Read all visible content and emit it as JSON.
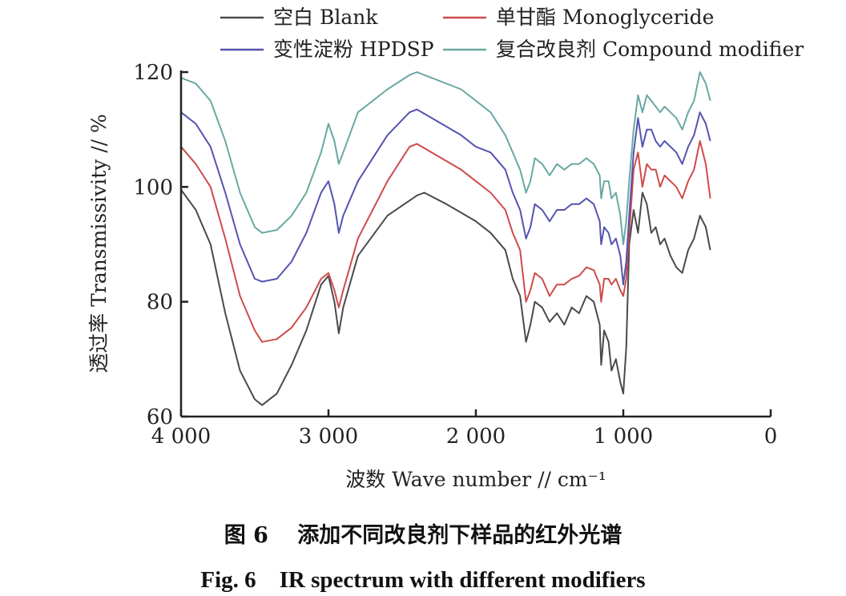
{
  "chart_data": {
    "type": "line",
    "xlabel": "波数 Wave number // cm⁻¹",
    "ylabel": "透过率 Transmissivity // %",
    "xlim": [
      4000,
      0
    ],
    "ylim": [
      60,
      120
    ],
    "x_ticks": [
      {
        "value": 4000,
        "label": "4 000"
      },
      {
        "value": 3000,
        "label": "3 000"
      },
      {
        "value": 2000,
        "label": "2 000"
      },
      {
        "value": 1000,
        "label": "1 000"
      },
      {
        "value": 0,
        "label": "0"
      }
    ],
    "y_ticks": [
      {
        "value": 60,
        "label": "60"
      },
      {
        "value": 80,
        "label": "80"
      },
      {
        "value": 100,
        "label": "100"
      },
      {
        "value": 120,
        "label": "120"
      }
    ],
    "grid": false,
    "legend_position": "top",
    "series": [
      {
        "name": "空白 Blank",
        "color": "#4a4a4a",
        "points": [
          [
            4000,
            99.5
          ],
          [
            3900,
            96
          ],
          [
            3800,
            90
          ],
          [
            3700,
            78
          ],
          [
            3600,
            68
          ],
          [
            3500,
            63
          ],
          [
            3450,
            62
          ],
          [
            3350,
            64
          ],
          [
            3250,
            69
          ],
          [
            3150,
            75
          ],
          [
            3050,
            83
          ],
          [
            3000,
            84.5
          ],
          [
            2960,
            80
          ],
          [
            2930,
            74.5
          ],
          [
            2900,
            79
          ],
          [
            2800,
            88
          ],
          [
            2600,
            95
          ],
          [
            2400,
            98.5
          ],
          [
            2350,
            99
          ],
          [
            2200,
            97
          ],
          [
            2000,
            94
          ],
          [
            1900,
            92
          ],
          [
            1800,
            89
          ],
          [
            1750,
            84
          ],
          [
            1700,
            81
          ],
          [
            1660,
            73
          ],
          [
            1630,
            76
          ],
          [
            1600,
            80
          ],
          [
            1550,
            79
          ],
          [
            1500,
            76.5
          ],
          [
            1450,
            78
          ],
          [
            1400,
            76
          ],
          [
            1350,
            79
          ],
          [
            1300,
            78
          ],
          [
            1250,
            81
          ],
          [
            1200,
            80
          ],
          [
            1160,
            76
          ],
          [
            1150,
            69
          ],
          [
            1130,
            75
          ],
          [
            1100,
            73
          ],
          [
            1080,
            68
          ],
          [
            1050,
            70
          ],
          [
            1020,
            66
          ],
          [
            1000,
            64
          ],
          [
            980,
            72
          ],
          [
            960,
            90
          ],
          [
            930,
            96
          ],
          [
            900,
            92
          ],
          [
            870,
            99
          ],
          [
            840,
            97
          ],
          [
            810,
            92
          ],
          [
            780,
            93
          ],
          [
            750,
            90
          ],
          [
            720,
            91
          ],
          [
            680,
            88
          ],
          [
            640,
            86
          ],
          [
            600,
            85
          ],
          [
            560,
            89
          ],
          [
            520,
            91
          ],
          [
            480,
            95
          ],
          [
            440,
            93
          ],
          [
            410,
            89
          ]
        ]
      },
      {
        "name": "单甘酯 Monoglyceride",
        "color": "#cf4b4b",
        "points": [
          [
            4000,
            107
          ],
          [
            3900,
            104
          ],
          [
            3800,
            100
          ],
          [
            3700,
            91
          ],
          [
            3600,
            81
          ],
          [
            3500,
            75
          ],
          [
            3450,
            73
          ],
          [
            3350,
            73.5
          ],
          [
            3250,
            75.5
          ],
          [
            3150,
            79
          ],
          [
            3050,
            84
          ],
          [
            3000,
            85
          ],
          [
            2960,
            82
          ],
          [
            2930,
            79
          ],
          [
            2900,
            82
          ],
          [
            2800,
            91
          ],
          [
            2600,
            101
          ],
          [
            2450,
            107
          ],
          [
            2400,
            107.5
          ],
          [
            2300,
            106
          ],
          [
            2100,
            103
          ],
          [
            2000,
            101
          ],
          [
            1900,
            99
          ],
          [
            1800,
            96
          ],
          [
            1750,
            92
          ],
          [
            1700,
            89
          ],
          [
            1660,
            80
          ],
          [
            1630,
            82
          ],
          [
            1600,
            85
          ],
          [
            1550,
            84
          ],
          [
            1500,
            81
          ],
          [
            1450,
            83
          ],
          [
            1400,
            83
          ],
          [
            1350,
            84
          ],
          [
            1300,
            84.5
          ],
          [
            1250,
            86
          ],
          [
            1200,
            85.5
          ],
          [
            1160,
            83
          ],
          [
            1150,
            80
          ],
          [
            1130,
            84
          ],
          [
            1100,
            84
          ],
          [
            1080,
            83
          ],
          [
            1050,
            84
          ],
          [
            1020,
            82
          ],
          [
            1000,
            81
          ],
          [
            980,
            84
          ],
          [
            960,
            92
          ],
          [
            930,
            103
          ],
          [
            900,
            106
          ],
          [
            870,
            100
          ],
          [
            840,
            104
          ],
          [
            810,
            103
          ],
          [
            780,
            103
          ],
          [
            750,
            100
          ],
          [
            720,
            102
          ],
          [
            680,
            101
          ],
          [
            640,
            100
          ],
          [
            600,
            98
          ],
          [
            560,
            101
          ],
          [
            520,
            103
          ],
          [
            480,
            108
          ],
          [
            440,
            104
          ],
          [
            410,
            98
          ]
        ]
      },
      {
        "name": "变性淀粉 HPDSP",
        "color": "#5454b0",
        "points": [
          [
            4000,
            113
          ],
          [
            3900,
            111
          ],
          [
            3800,
            107
          ],
          [
            3700,
            99
          ],
          [
            3600,
            90
          ],
          [
            3500,
            84
          ],
          [
            3450,
            83.5
          ],
          [
            3350,
            84
          ],
          [
            3250,
            87
          ],
          [
            3150,
            92
          ],
          [
            3050,
            99
          ],
          [
            3000,
            101
          ],
          [
            2960,
            97
          ],
          [
            2930,
            92
          ],
          [
            2900,
            95
          ],
          [
            2800,
            101
          ],
          [
            2600,
            109
          ],
          [
            2450,
            113
          ],
          [
            2400,
            113.5
          ],
          [
            2300,
            112
          ],
          [
            2100,
            109
          ],
          [
            2000,
            107
          ],
          [
            1900,
            106
          ],
          [
            1800,
            103
          ],
          [
            1750,
            99
          ],
          [
            1700,
            96
          ],
          [
            1660,
            91
          ],
          [
            1630,
            93
          ],
          [
            1600,
            97
          ],
          [
            1550,
            96
          ],
          [
            1500,
            94
          ],
          [
            1450,
            96
          ],
          [
            1400,
            96
          ],
          [
            1350,
            97
          ],
          [
            1300,
            97
          ],
          [
            1250,
            98
          ],
          [
            1200,
            97
          ],
          [
            1160,
            94
          ],
          [
            1150,
            90
          ],
          [
            1130,
            93
          ],
          [
            1100,
            92
          ],
          [
            1080,
            90
          ],
          [
            1050,
            91
          ],
          [
            1020,
            88
          ],
          [
            1000,
            83
          ],
          [
            980,
            87
          ],
          [
            960,
            95
          ],
          [
            930,
            106
          ],
          [
            900,
            112
          ],
          [
            870,
            107
          ],
          [
            840,
            110
          ],
          [
            810,
            110
          ],
          [
            780,
            108
          ],
          [
            750,
            107
          ],
          [
            720,
            108
          ],
          [
            680,
            107
          ],
          [
            640,
            106
          ],
          [
            600,
            104
          ],
          [
            560,
            107
          ],
          [
            520,
            109
          ],
          [
            480,
            113
          ],
          [
            440,
            111
          ],
          [
            410,
            108
          ]
        ]
      },
      {
        "name": "复合改良剂 Compound modifier",
        "color": "#6aa8a3",
        "points": [
          [
            4000,
            119
          ],
          [
            3900,
            118
          ],
          [
            3800,
            115
          ],
          [
            3700,
            108
          ],
          [
            3600,
            99
          ],
          [
            3500,
            93
          ],
          [
            3450,
            92
          ],
          [
            3350,
            92.5
          ],
          [
            3250,
            95
          ],
          [
            3150,
            99
          ],
          [
            3050,
            106
          ],
          [
            3000,
            111
          ],
          [
            2960,
            108
          ],
          [
            2930,
            104
          ],
          [
            2900,
            106
          ],
          [
            2800,
            113
          ],
          [
            2600,
            117
          ],
          [
            2450,
            119.5
          ],
          [
            2400,
            120
          ],
          [
            2300,
            119
          ],
          [
            2100,
            117
          ],
          [
            2000,
            115
          ],
          [
            1900,
            113
          ],
          [
            1800,
            109
          ],
          [
            1750,
            106
          ],
          [
            1700,
            103
          ],
          [
            1660,
            99
          ],
          [
            1630,
            101
          ],
          [
            1600,
            105
          ],
          [
            1550,
            104
          ],
          [
            1500,
            102
          ],
          [
            1450,
            104
          ],
          [
            1400,
            103
          ],
          [
            1350,
            104
          ],
          [
            1300,
            104
          ],
          [
            1250,
            105
          ],
          [
            1200,
            104
          ],
          [
            1160,
            102
          ],
          [
            1150,
            98
          ],
          [
            1130,
            101
          ],
          [
            1100,
            101
          ],
          [
            1080,
            98
          ],
          [
            1050,
            99
          ],
          [
            1020,
            95
          ],
          [
            1000,
            90
          ],
          [
            980,
            94
          ],
          [
            960,
            101
          ],
          [
            930,
            110
          ],
          [
            900,
            116
          ],
          [
            870,
            113
          ],
          [
            840,
            116
          ],
          [
            810,
            115
          ],
          [
            780,
            114
          ],
          [
            750,
            113
          ],
          [
            720,
            114
          ],
          [
            680,
            113
          ],
          [
            640,
            112
          ],
          [
            600,
            110
          ],
          [
            560,
            113
          ],
          [
            520,
            115
          ],
          [
            480,
            120
          ],
          [
            440,
            118
          ],
          [
            410,
            115
          ]
        ]
      }
    ]
  },
  "caption": {
    "cn": "图 6　 添加不同改良剂下样品的红外光谱",
    "en": "Fig. 6　IR spectrum with different modifiers"
  }
}
